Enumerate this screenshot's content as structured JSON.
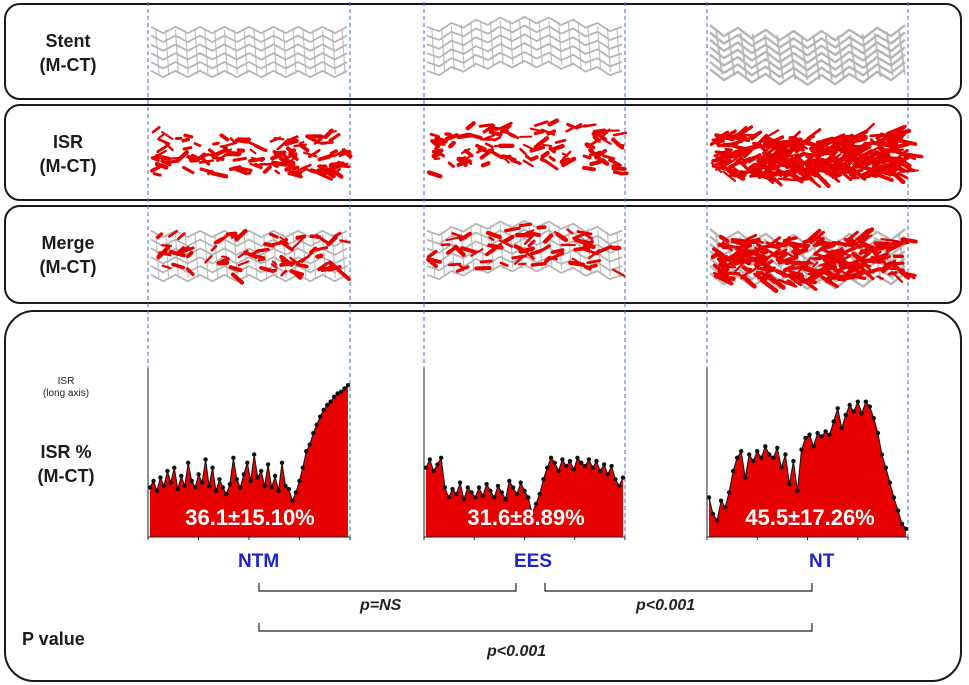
{
  "rows": {
    "stent": {
      "line1": "Stent",
      "line2": "(M-CT)"
    },
    "isr": {
      "line1": "ISR",
      "line2": "(M-CT)"
    },
    "merge": {
      "line1": "Merge",
      "line2": "(M-CT)"
    }
  },
  "chart_panel": {
    "axis_label_line1": "ISR",
    "axis_label_line2": "(long axis)",
    "pct_label_line1": "ISR %",
    "pct_label_line2": "(M-CT)"
  },
  "groups": [
    {
      "name": "NTM",
      "value_text": "36.1±15.10%"
    },
    {
      "name": "EES",
      "value_text": "31.6±8.89%"
    },
    {
      "name": "NT",
      "value_text": "45.5±17.26%"
    }
  ],
  "p_value_label": "P value",
  "comparisons": [
    {
      "pair": "NTM vs EES",
      "text": "p=NS"
    },
    {
      "pair": "EES vs NT",
      "text": "p<0.001"
    },
    {
      "pair": "NTM vs NT",
      "text": "p<0.001"
    }
  ],
  "colors": {
    "stent": "#b5b5b5",
    "isr": "#e60000",
    "group_label": "#1f23c8",
    "guide_line": "#4a6fb0"
  },
  "chart_data": {
    "type": "area",
    "title": "",
    "series": [
      {
        "name": "NTM",
        "values": [
          0.3,
          0.34,
          0.28,
          0.36,
          0.31,
          0.4,
          0.33,
          0.42,
          0.29,
          0.37,
          0.31,
          0.45,
          0.34,
          0.3,
          0.38,
          0.33,
          0.47,
          0.31,
          0.42,
          0.28,
          0.35,
          0.3,
          0.26,
          0.32,
          0.48,
          0.35,
          0.3,
          0.38,
          0.45,
          0.34,
          0.5,
          0.36,
          0.4,
          0.31,
          0.44,
          0.3,
          0.37,
          0.28,
          0.45,
          0.31,
          0.29,
          0.22,
          0.27,
          0.34,
          0.42,
          0.52,
          0.56,
          0.63,
          0.68,
          0.73,
          0.77,
          0.8,
          0.82,
          0.85,
          0.87,
          0.88,
          0.9,
          0.92
        ]
      },
      {
        "name": "EES",
        "values": [
          0.42,
          0.47,
          0.4,
          0.44,
          0.48,
          0.3,
          0.24,
          0.29,
          0.26,
          0.33,
          0.23,
          0.3,
          0.27,
          0.24,
          0.3,
          0.25,
          0.32,
          0.28,
          0.24,
          0.31,
          0.27,
          0.23,
          0.34,
          0.3,
          0.26,
          0.33,
          0.28,
          0.24,
          0.14,
          0.2,
          0.26,
          0.35,
          0.42,
          0.48,
          0.45,
          0.4,
          0.47,
          0.43,
          0.46,
          0.41,
          0.48,
          0.45,
          0.43,
          0.47,
          0.42,
          0.46,
          0.4,
          0.44,
          0.38,
          0.43,
          0.35,
          0.31,
          0.36
        ]
      },
      {
        "name": "NT",
        "values": [
          0.24,
          0.14,
          0.1,
          0.22,
          0.18,
          0.27,
          0.4,
          0.48,
          0.52,
          0.36,
          0.5,
          0.46,
          0.52,
          0.48,
          0.55,
          0.5,
          0.48,
          0.54,
          0.42,
          0.5,
          0.32,
          0.46,
          0.28,
          0.53,
          0.6,
          0.62,
          0.55,
          0.63,
          0.61,
          0.64,
          0.62,
          0.7,
          0.78,
          0.66,
          0.74,
          0.8,
          0.76,
          0.82,
          0.75,
          0.82,
          0.79,
          0.72,
          0.63,
          0.5,
          0.42,
          0.33,
          0.24,
          0.16,
          0.08,
          0.05
        ]
      }
    ],
    "ylim": [
      0,
      1
    ],
    "grid": false
  }
}
